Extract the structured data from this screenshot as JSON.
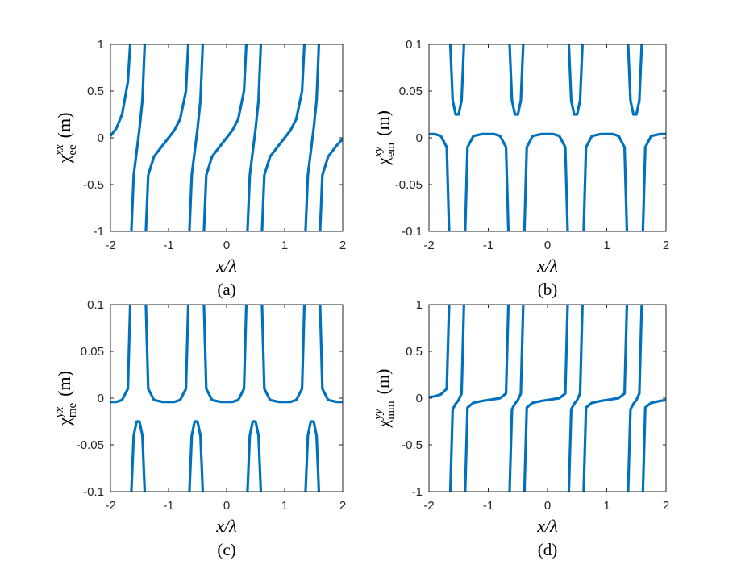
{
  "chart_data": [
    {
      "type": "line",
      "caption": "(a)",
      "xlabel": "x/λ",
      "ylabel": {
        "symbol": "χ",
        "sup": "xx",
        "sub": "ee",
        "unit": "(m)"
      },
      "color": "#0072bd",
      "xlim": [
        -2,
        2
      ],
      "xticks": [
        -2,
        -1,
        0,
        1,
        2
      ],
      "ylim": [
        -1,
        1
      ],
      "yticks": [
        -1,
        -0.5,
        0,
        0.5,
        1
      ],
      "x": [
        -2,
        -1.9,
        -1.8,
        -1.7,
        -1.66,
        -1.65,
        -1.64,
        -1.6,
        -1.55,
        -1.5,
        -1.45,
        -1.41,
        -1.4,
        -1.39,
        -1.35,
        -1.25,
        -1.1,
        -1,
        -0.9,
        -0.8,
        -0.7,
        -0.66,
        -0.65,
        -0.64,
        -0.6,
        -0.55,
        -0.5,
        -0.45,
        -0.41,
        -0.4,
        -0.39,
        -0.35,
        -0.25,
        -0.1,
        0,
        0.1,
        0.2,
        0.3,
        0.34,
        0.35,
        0.36,
        0.4,
        0.45,
        0.5,
        0.55,
        0.59,
        0.6,
        0.61,
        0.65,
        0.75,
        0.9,
        1,
        1.1,
        1.2,
        1.3,
        1.34,
        1.35,
        1.36,
        1.4,
        1.45,
        1.5,
        1.55,
        1.59,
        1.6,
        1.61,
        1.65,
        1.75,
        1.9,
        2
      ],
      "values": [
        0.02,
        0.1,
        0.25,
        0.6,
        1,
        null,
        -1,
        -0.4,
        -0.15,
        0.1,
        0.4,
        1,
        null,
        -1,
        -0.4,
        -0.2,
        -0.08,
        0,
        0.08,
        0.2,
        0.5,
        1,
        null,
        -1,
        -0.4,
        -0.15,
        0.1,
        0.4,
        1,
        null,
        -1,
        -0.4,
        -0.2,
        -0.08,
        0,
        0.08,
        0.2,
        0.5,
        1,
        null,
        -1,
        -0.4,
        -0.15,
        0.1,
        0.4,
        1,
        null,
        -1,
        -0.4,
        -0.2,
        -0.08,
        0,
        0.08,
        0.2,
        0.5,
        1,
        null,
        -1,
        -0.4,
        -0.15,
        0.1,
        0.4,
        1,
        null,
        -1,
        -0.4,
        -0.2,
        -0.08,
        -0.01
      ]
    },
    {
      "type": "line",
      "caption": "(b)",
      "xlabel": "x/λ",
      "ylabel": {
        "symbol": "χ",
        "sup": "xy",
        "sub": "em",
        "unit": "(m)"
      },
      "color": "#0072bd",
      "xlim": [
        -2,
        2
      ],
      "xticks": [
        -2,
        -1,
        0,
        1,
        2
      ],
      "ylim": [
        -0.1,
        0.1
      ],
      "yticks": [
        -0.1,
        -0.05,
        0,
        0.05,
        0.1
      ],
      "x": [
        -2,
        -1.9,
        -1.8,
        -1.7,
        -1.66,
        -1.65,
        -1.64,
        -1.6,
        -1.55,
        -1.5,
        -1.45,
        -1.41,
        -1.4,
        -1.39,
        -1.35,
        -1.25,
        -1.1,
        -1,
        -0.9,
        -0.8,
        -0.7,
        -0.66,
        -0.65,
        -0.64,
        -0.6,
        -0.55,
        -0.5,
        -0.45,
        -0.41,
        -0.4,
        -0.39,
        -0.35,
        -0.25,
        -0.1,
        0,
        0.1,
        0.2,
        0.3,
        0.34,
        0.35,
        0.36,
        0.4,
        0.45,
        0.5,
        0.55,
        0.59,
        0.6,
        0.61,
        0.65,
        0.75,
        0.9,
        1,
        1.1,
        1.2,
        1.3,
        1.34,
        1.35,
        1.36,
        1.4,
        1.45,
        1.5,
        1.55,
        1.59,
        1.6,
        1.61,
        1.65,
        1.75,
        1.9,
        2
      ],
      "values": [
        0.004,
        0.004,
        0.002,
        -0.01,
        -0.1,
        null,
        0.1,
        0.04,
        0.025,
        0.025,
        0.04,
        0.1,
        null,
        -0.1,
        -0.01,
        0.002,
        0.004,
        0.004,
        0.004,
        0.002,
        -0.01,
        -0.1,
        null,
        0.1,
        0.04,
        0.025,
        0.025,
        0.04,
        0.1,
        null,
        -0.1,
        -0.01,
        0.002,
        0.004,
        0.004,
        0.004,
        0.002,
        -0.01,
        -0.1,
        null,
        0.1,
        0.04,
        0.025,
        0.025,
        0.04,
        0.1,
        null,
        -0.1,
        -0.01,
        0.002,
        0.004,
        0.004,
        0.004,
        0.002,
        -0.01,
        -0.1,
        null,
        0.1,
        0.04,
        0.025,
        0.025,
        0.04,
        0.1,
        null,
        -0.1,
        -0.01,
        0.002,
        0.004,
        0.004
      ]
    },
    {
      "type": "line",
      "caption": "(c)",
      "xlabel": "x/λ",
      "ylabel": {
        "symbol": "χ",
        "sup": "yx",
        "sub": "me",
        "unit": "(m)"
      },
      "color": "#0072bd",
      "xlim": [
        -2,
        2
      ],
      "xticks": [
        -2,
        -1,
        0,
        1,
        2
      ],
      "ylim": [
        -0.1,
        0.1
      ],
      "yticks": [
        -0.1,
        -0.05,
        0,
        0.05,
        0.1
      ],
      "x": [
        -2,
        -1.9,
        -1.8,
        -1.7,
        -1.66,
        -1.65,
        -1.64,
        -1.6,
        -1.55,
        -1.5,
        -1.45,
        -1.41,
        -1.4,
        -1.39,
        -1.35,
        -1.25,
        -1.1,
        -1,
        -0.9,
        -0.8,
        -0.7,
        -0.66,
        -0.65,
        -0.64,
        -0.6,
        -0.55,
        -0.5,
        -0.45,
        -0.41,
        -0.4,
        -0.39,
        -0.35,
        -0.25,
        -0.1,
        0,
        0.1,
        0.2,
        0.3,
        0.34,
        0.35,
        0.36,
        0.4,
        0.45,
        0.5,
        0.55,
        0.59,
        0.6,
        0.61,
        0.65,
        0.75,
        0.9,
        1,
        1.1,
        1.2,
        1.3,
        1.34,
        1.35,
        1.36,
        1.4,
        1.45,
        1.5,
        1.55,
        1.59,
        1.6,
        1.61,
        1.65,
        1.75,
        1.9,
        2
      ],
      "values": [
        -0.004,
        -0.004,
        -0.002,
        0.01,
        0.1,
        null,
        -0.1,
        -0.04,
        -0.025,
        -0.025,
        -0.04,
        -0.1,
        null,
        0.1,
        0.01,
        -0.002,
        -0.004,
        -0.004,
        -0.004,
        -0.002,
        0.01,
        0.1,
        null,
        -0.1,
        -0.04,
        -0.025,
        -0.025,
        -0.04,
        -0.1,
        null,
        0.1,
        0.01,
        -0.002,
        -0.004,
        -0.004,
        -0.004,
        -0.002,
        0.01,
        0.1,
        null,
        -0.1,
        -0.04,
        -0.025,
        -0.025,
        -0.04,
        -0.1,
        null,
        0.1,
        0.01,
        -0.002,
        -0.004,
        -0.004,
        -0.004,
        -0.002,
        0.01,
        0.1,
        null,
        -0.1,
        -0.04,
        -0.025,
        -0.025,
        -0.04,
        -0.1,
        null,
        0.1,
        0.01,
        -0.002,
        -0.004,
        -0.004
      ]
    },
    {
      "type": "line",
      "caption": "(d)",
      "xlabel": "x/λ",
      "ylabel": {
        "symbol": "χ",
        "sup": "yy",
        "sub": "mm",
        "unit": "(m)"
      },
      "color": "#0072bd",
      "xlim": [
        -2,
        2
      ],
      "xticks": [
        -2,
        -1,
        0,
        1,
        2
      ],
      "ylim": [
        -1,
        1
      ],
      "yticks": [
        -1,
        -0.5,
        0,
        0.5,
        1
      ],
      "x": [
        -2,
        -1.9,
        -1.8,
        -1.7,
        -1.66,
        -1.65,
        -1.64,
        -1.6,
        -1.55,
        -1.5,
        -1.45,
        -1.41,
        -1.4,
        -1.39,
        -1.35,
        -1.25,
        -1.1,
        -1,
        -0.9,
        -0.8,
        -0.7,
        -0.66,
        -0.65,
        -0.64,
        -0.6,
        -0.55,
        -0.5,
        -0.45,
        -0.41,
        -0.4,
        -0.39,
        -0.35,
        -0.25,
        -0.1,
        0,
        0.1,
        0.2,
        0.3,
        0.34,
        0.35,
        0.36,
        0.4,
        0.45,
        0.5,
        0.55,
        0.59,
        0.6,
        0.61,
        0.65,
        0.75,
        0.9,
        1,
        1.1,
        1.2,
        1.3,
        1.34,
        1.35,
        1.36,
        1.4,
        1.45,
        1.5,
        1.55,
        1.59,
        1.6,
        1.61,
        1.65,
        1.75,
        1.9,
        2
      ],
      "values": [
        0.01,
        0.02,
        0.04,
        0.1,
        1,
        null,
        -1,
        -0.12,
        -0.06,
        -0.02,
        0.05,
        1,
        null,
        -1,
        -0.1,
        -0.05,
        -0.03,
        -0.02,
        -0.01,
        0,
        0.05,
        1,
        null,
        -1,
        -0.12,
        -0.06,
        -0.02,
        0.05,
        1,
        null,
        -1,
        -0.1,
        -0.05,
        -0.03,
        -0.02,
        -0.01,
        0,
        0.05,
        1,
        null,
        -1,
        -0.12,
        -0.06,
        -0.02,
        0.05,
        1,
        null,
        -1,
        -0.1,
        -0.05,
        -0.03,
        -0.02,
        -0.01,
        0,
        0.05,
        1,
        null,
        -1,
        -0.12,
        -0.06,
        -0.02,
        0.05,
        1,
        null,
        -1,
        -0.1,
        -0.05,
        -0.03,
        -0.02
      ]
    }
  ]
}
